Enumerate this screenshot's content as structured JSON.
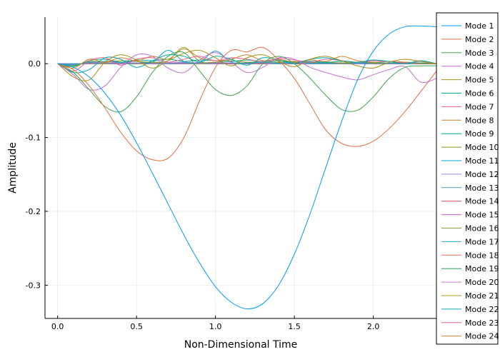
{
  "chart_data": {
    "type": "line",
    "title": "",
    "xlabel": "Non-Dimensional Time",
    "ylabel": "Amplitude",
    "xlim": [
      -0.08,
      2.4
    ],
    "ylim": [
      -0.345,
      0.063
    ],
    "x_ticks": [
      0.0,
      0.5,
      1.0,
      1.5,
      2.0
    ],
    "x_tick_labels": [
      "0.0",
      "0.5",
      "1.0",
      "1.5",
      "2.0"
    ],
    "y_ticks": [
      0.0,
      -0.1,
      -0.2,
      -0.3
    ],
    "y_tick_labels": [
      "0.0",
      "-0.1",
      "-0.2",
      "-0.3"
    ],
    "grid": true,
    "legend_position": "right",
    "x": [
      0.0,
      0.1,
      0.2,
      0.3,
      0.4,
      0.5,
      0.6,
      0.7,
      0.8,
      0.9,
      1.0,
      1.1,
      1.2,
      1.3,
      1.4,
      1.5,
      1.6,
      1.7,
      1.8,
      1.9,
      2.0,
      2.1,
      2.2,
      2.3,
      2.4
    ],
    "series": [
      {
        "name": "Mode 1",
        "color": "#009AFA",
        "values": [
          0.0,
          -0.005,
          -0.018,
          -0.04,
          -0.07,
          -0.107,
          -0.148,
          -0.19,
          -0.232,
          -0.27,
          -0.302,
          -0.323,
          -0.332,
          -0.325,
          -0.3,
          -0.258,
          -0.203,
          -0.14,
          -0.078,
          -0.022,
          0.017,
          0.04,
          0.05,
          0.051,
          0.05
        ]
      },
      {
        "name": "Mode 2",
        "color": "#E36F47",
        "values": [
          0.0,
          -0.008,
          -0.03,
          -0.06,
          -0.093,
          -0.118,
          -0.13,
          -0.128,
          -0.1,
          -0.05,
          -0.005,
          0.018,
          0.016,
          0.022,
          0.005,
          -0.02,
          -0.055,
          -0.09,
          -0.108,
          -0.112,
          -0.105,
          -0.088,
          -0.065,
          -0.038,
          -0.01
        ]
      },
      {
        "name": "Mode 3",
        "color": "#3EA44E",
        "values": [
          0.0,
          -0.012,
          -0.035,
          -0.058,
          -0.065,
          -0.045,
          -0.012,
          0.01,
          0.015,
          -0.01,
          -0.035,
          -0.043,
          -0.03,
          0.0,
          0.01,
          0.0,
          -0.02,
          -0.043,
          -0.062,
          -0.063,
          -0.045,
          -0.02,
          -0.005,
          -0.003,
          -0.003
        ]
      },
      {
        "name": "Mode 4",
        "color": "#C271D2",
        "values": [
          0.0,
          -0.015,
          -0.035,
          -0.03,
          -0.005,
          0.012,
          0.01,
          -0.006,
          -0.012,
          0.005,
          0.015,
          0.002,
          -0.012,
          -0.005,
          0.008,
          0.006,
          -0.005,
          -0.012,
          -0.018,
          -0.022,
          -0.015,
          -0.008,
          -0.004,
          -0.025,
          -0.02
        ]
      },
      {
        "name": "Mode 5",
        "color": "#AC8D18",
        "values": [
          0.0,
          -0.018,
          -0.022,
          0.002,
          0.012,
          0.005,
          -0.006,
          0.004,
          0.014,
          0.018,
          0.008,
          -0.003,
          0.008,
          0.012,
          0.003,
          -0.004,
          0.006,
          0.01,
          0.004,
          -0.003,
          -0.006,
          0.002,
          0.006,
          0.003,
          0.0
        ]
      },
      {
        "name": "Mode 6",
        "color": "#00A9AD",
        "values": [
          0.0,
          -0.012,
          -0.008,
          0.008,
          0.006,
          -0.005,
          0.004,
          0.012,
          0.01,
          0.002,
          0.01,
          0.006,
          -0.002,
          0.008,
          0.005,
          0.0,
          0.006,
          0.008,
          0.004,
          0.002,
          0.005,
          0.003,
          0.0,
          0.004,
          0.0
        ]
      },
      {
        "name": "Mode 7",
        "color": "#ED5E93",
        "values": [
          0.0,
          -0.01,
          0.004,
          0.008,
          -0.002,
          0.006,
          0.008,
          0.002,
          0.006,
          0.01,
          0.004,
          0.008,
          0.006,
          0.003,
          0.007,
          0.005,
          0.002,
          0.006,
          0.004,
          0.002,
          0.004,
          0.003,
          0.001,
          0.003,
          0.0
        ]
      },
      {
        "name": "Mode 8",
        "color": "#C68225",
        "values": [
          0.0,
          -0.006,
          0.006,
          0.002,
          0.008,
          0.004,
          0.01,
          0.006,
          0.02,
          0.008,
          0.004,
          0.006,
          0.012,
          0.004,
          0.006,
          0.002,
          0.005,
          0.003,
          0.01,
          0.004,
          0.002,
          0.003,
          0.002,
          0.0,
          0.0
        ]
      },
      {
        "name": "Mode 9",
        "color": "#00A98D",
        "values": [
          0.0,
          -0.004,
          0.004,
          0.006,
          0.002,
          0.005,
          0.004,
          0.006,
          0.003,
          0.005,
          0.004,
          0.003,
          0.005,
          0.003,
          0.004,
          0.002,
          0.003,
          0.002,
          0.003,
          0.002,
          0.002,
          0.001,
          0.002,
          0.001,
          0.0
        ]
      },
      {
        "name": "Mode 10",
        "color": "#8E971D",
        "values": [
          0.0,
          -0.003,
          0.003,
          0.002,
          0.004,
          0.003,
          0.002,
          0.004,
          0.022,
          0.003,
          0.002,
          0.004,
          0.002,
          0.003,
          0.002,
          0.003,
          0.002,
          0.002,
          0.001,
          0.002,
          0.001,
          0.001,
          0.001,
          0.001,
          0.0
        ]
      },
      {
        "name": "Mode 11",
        "color": "#00A8CB",
        "values": [
          0.0,
          -0.002,
          0.002,
          0.003,
          0.002,
          0.003,
          0.002,
          0.018,
          0.003,
          0.002,
          0.017,
          0.002,
          0.001,
          0.002,
          0.001,
          0.002,
          0.001,
          0.001,
          0.001,
          0.001,
          0.001,
          0.001,
          0.0,
          0.001,
          0.0
        ]
      },
      {
        "name": "Mode 12",
        "color": "#9B7FE9",
        "values": [
          0.0,
          -0.002,
          0.002,
          0.001,
          0.002,
          0.001,
          0.002,
          0.001,
          0.002,
          0.001,
          0.002,
          0.001,
          0.001,
          0.001,
          0.001,
          0.001,
          0.001,
          0.001,
          0.001,
          0.0,
          0.001,
          0.0,
          0.0,
          0.0,
          0.0
        ]
      },
      {
        "name": "Mode 13",
        "color": "#619CB6",
        "values": [
          0.0,
          -0.001,
          0.001,
          0.001,
          0.001,
          0.001,
          0.001,
          0.001,
          0.001,
          0.001,
          0.001,
          0.001,
          0.001,
          0.001,
          0.0,
          0.001,
          0.0,
          0.0,
          0.0,
          0.0,
          0.0,
          0.0,
          0.0,
          0.0,
          0.0
        ]
      },
      {
        "name": "Mode 14",
        "color": "#D64B5D",
        "values": [
          0.0,
          -0.001,
          0.001,
          0.001,
          0.001,
          0.001,
          0.001,
          0.001,
          0.001,
          0.001,
          0.001,
          0.0,
          0.001,
          0.0,
          0.001,
          0.0,
          0.0,
          0.0,
          0.0,
          0.0,
          0.0,
          0.0,
          0.0,
          0.0,
          0.0
        ]
      },
      {
        "name": "Mode 15",
        "color": "#CE60C9",
        "values": [
          0.0,
          -0.001,
          0.0,
          0.001,
          0.0,
          0.001,
          0.0,
          0.001,
          0.0,
          0.001,
          0.0,
          0.001,
          0.0,
          0.001,
          0.0,
          0.0,
          0.0,
          0.0,
          0.0,
          0.0,
          0.0,
          0.0,
          0.0,
          0.0,
          0.0
        ]
      },
      {
        "name": "Mode 16",
        "color": "#8E9C3F",
        "values": [
          0.0,
          -0.001,
          0.0,
          0.0,
          0.001,
          0.0,
          0.0,
          0.001,
          0.0,
          0.0,
          0.001,
          0.0,
          0.0,
          0.0,
          0.0,
          0.0,
          0.0,
          0.0,
          0.0,
          0.0,
          0.0,
          0.0,
          0.0,
          0.0,
          0.0
        ]
      },
      {
        "name": "Mode 17",
        "color": "#20A4DA",
        "values": [
          0.0,
          0.0,
          0.0,
          0.0,
          0.0,
          0.0,
          0.0,
          0.0,
          0.0,
          0.0,
          0.0,
          0.0,
          0.0,
          0.0,
          0.0,
          0.0,
          0.0,
          0.0,
          0.0,
          0.0,
          0.0,
          0.0,
          0.0,
          0.0,
          0.0
        ]
      },
      {
        "name": "Mode 18",
        "color": "#EC6B4A",
        "values": [
          0.0,
          0.0,
          0.0,
          0.0,
          0.0,
          0.0,
          0.0,
          0.0,
          0.0,
          0.0,
          0.0,
          0.0,
          0.0,
          0.0,
          0.0,
          0.0,
          0.0,
          0.0,
          0.0,
          0.0,
          0.0,
          0.0,
          0.0,
          0.0,
          0.0
        ]
      },
      {
        "name": "Mode 19",
        "color": "#2F9E57",
        "values": [
          0.0,
          0.0,
          0.0,
          0.0,
          0.0,
          0.0,
          0.0,
          0.0,
          0.0,
          0.0,
          0.0,
          0.0,
          0.0,
          0.0,
          0.0,
          0.0,
          0.0,
          0.0,
          0.0,
          0.0,
          0.0,
          0.0,
          0.0,
          0.0,
          0.0
        ]
      },
      {
        "name": "Mode 20",
        "color": "#C77FD6",
        "values": [
          0.0,
          0.0,
          0.0,
          0.0,
          0.0,
          0.0,
          0.0,
          0.0,
          0.0,
          0.0,
          0.0,
          0.0,
          0.0,
          0.0,
          0.0,
          0.0,
          0.0,
          0.0,
          0.0,
          0.0,
          0.0,
          0.0,
          0.0,
          0.0,
          0.0
        ]
      },
      {
        "name": "Mode 21",
        "color": "#B99A18",
        "values": [
          0.0,
          0.0,
          0.0,
          0.0,
          0.0,
          0.0,
          0.0,
          0.0,
          0.0,
          0.0,
          0.0,
          0.0,
          0.0,
          0.0,
          0.0,
          0.0,
          0.0,
          0.0,
          0.0,
          0.0,
          0.0,
          0.0,
          0.0,
          0.0,
          0.0
        ]
      },
      {
        "name": "Mode 22",
        "color": "#0FA2A8",
        "values": [
          0.0,
          0.0,
          0.0,
          0.0,
          0.0,
          0.0,
          0.0,
          0.0,
          0.0,
          0.0,
          0.0,
          0.0,
          0.0,
          0.0,
          0.0,
          0.0,
          0.0,
          0.0,
          0.0,
          0.0,
          0.0,
          0.0,
          0.0,
          0.0,
          0.0
        ]
      },
      {
        "name": "Mode 23",
        "color": "#E263A2",
        "values": [
          0.0,
          0.0,
          0.0,
          0.0,
          0.0,
          0.0,
          0.0,
          0.0,
          0.0,
          0.0,
          0.0,
          0.0,
          0.0,
          0.0,
          0.0,
          0.0,
          0.0,
          0.0,
          0.0,
          0.0,
          0.0,
          0.0,
          0.0,
          0.0,
          0.0
        ]
      },
      {
        "name": "Mode 24",
        "color": "#C8862A",
        "values": [
          0.0,
          0.0,
          0.0,
          0.0,
          0.0,
          0.0,
          0.0,
          0.0,
          0.0,
          0.0,
          0.0,
          0.0,
          0.0,
          0.0,
          0.0,
          0.0,
          0.0,
          0.0,
          0.0,
          0.0,
          0.0,
          0.0,
          0.0,
          0.0,
          0.0
        ]
      }
    ]
  }
}
